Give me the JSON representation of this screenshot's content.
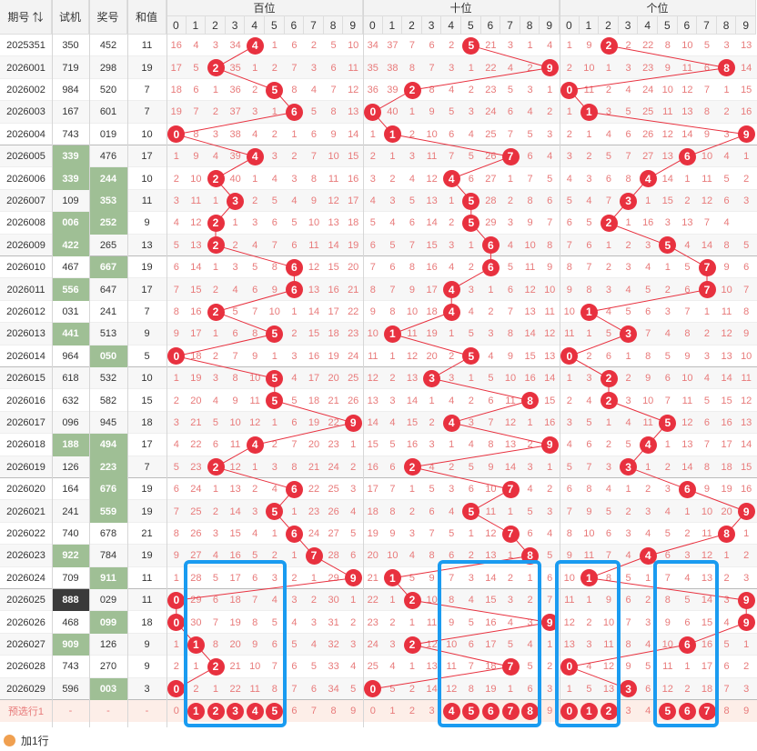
{
  "headers": {
    "period": "期号",
    "trial": "试机",
    "prize": "奖号",
    "sum": "和值",
    "groups": [
      "百位",
      "十位",
      "个位"
    ],
    "digits": [
      "0",
      "1",
      "2",
      "3",
      "4",
      "5",
      "6",
      "7",
      "8",
      "9"
    ]
  },
  "rows": [
    {
      "period": "2025351",
      "trial": "350",
      "prize": "452",
      "sum": "11",
      "hl": [
        "",
        ""
      ],
      "b": [
        "16",
        "4",
        "3",
        "34",
        "4",
        "1",
        "6",
        "2",
        "5",
        "10"
      ],
      "s": [
        "34",
        "37",
        "7",
        "6",
        "2",
        "5",
        "21",
        "3",
        "1",
        "4"
      ],
      "g": [
        "1",
        "9",
        "2",
        "2",
        "22",
        "8",
        "10",
        "5",
        "3",
        "13"
      ]
    },
    {
      "period": "2026001",
      "trial": "719",
      "prize": "298",
      "sum": "19",
      "hl": [
        "",
        ""
      ],
      "b": [
        "17",
        "5",
        "2",
        "35",
        "1",
        "2",
        "7",
        "3",
        "6",
        "11"
      ],
      "s": [
        "35",
        "38",
        "8",
        "7",
        "3",
        "1",
        "22",
        "4",
        "2",
        "9"
      ],
      "g": [
        "2",
        "10",
        "1",
        "3",
        "23",
        "9",
        "11",
        "6",
        "8",
        "14"
      ]
    },
    {
      "period": "2026002",
      "trial": "984",
      "prize": "520",
      "sum": "7",
      "hl": [
        "",
        ""
      ],
      "b": [
        "18",
        "6",
        "1",
        "36",
        "2",
        "5",
        "8",
        "4",
        "7",
        "12"
      ],
      "s": [
        "36",
        "39",
        "2",
        "8",
        "4",
        "2",
        "23",
        "5",
        "3",
        "1"
      ],
      "g": [
        "0",
        "11",
        "2",
        "4",
        "24",
        "10",
        "12",
        "7",
        "1",
        "15"
      ]
    },
    {
      "period": "2026003",
      "trial": "167",
      "prize": "601",
      "sum": "7",
      "hl": [
        "",
        ""
      ],
      "b": [
        "19",
        "7",
        "2",
        "37",
        "3",
        "1",
        "6",
        "5",
        "8",
        "13"
      ],
      "s": [
        "0",
        "40",
        "1",
        "9",
        "5",
        "3",
        "24",
        "6",
        "4",
        "2"
      ],
      "g": [
        "1",
        "1",
        "3",
        "5",
        "25",
        "11",
        "13",
        "8",
        "2",
        "16"
      ]
    },
    {
      "period": "2026004",
      "trial": "743",
      "prize": "019",
      "sum": "10",
      "hl": [
        "",
        ""
      ],
      "b": [
        "0",
        "8",
        "3",
        "38",
        "4",
        "2",
        "1",
        "6",
        "9",
        "14"
      ],
      "s": [
        "1",
        "1",
        "2",
        "10",
        "6",
        "4",
        "25",
        "7",
        "5",
        "3"
      ],
      "g": [
        "2",
        "1",
        "4",
        "6",
        "26",
        "12",
        "14",
        "9",
        "3",
        "9"
      ]
    },
    {
      "period": "2026005",
      "trial": "339",
      "prize": "476",
      "sum": "17",
      "hl": [
        "g",
        ""
      ],
      "b": [
        "1",
        "9",
        "4",
        "39",
        "4",
        "3",
        "2",
        "7",
        "10",
        "15"
      ],
      "s": [
        "2",
        "1",
        "3",
        "11",
        "7",
        "5",
        "26",
        "7",
        "6",
        "4"
      ],
      "g": [
        "3",
        "2",
        "5",
        "7",
        "27",
        "13",
        "6",
        "10",
        "4",
        "1"
      ]
    },
    {
      "period": "2026006",
      "trial": "339",
      "prize": "244",
      "sum": "10",
      "hl": [
        "g",
        "g"
      ],
      "b": [
        "2",
        "10",
        "2",
        "40",
        "1",
        "4",
        "3",
        "8",
        "11",
        "16"
      ],
      "s": [
        "3",
        "2",
        "4",
        "12",
        "4",
        "6",
        "27",
        "1",
        "7",
        "5"
      ],
      "g": [
        "4",
        "3",
        "6",
        "8",
        "4",
        "14",
        "1",
        "11",
        "5",
        "2"
      ]
    },
    {
      "period": "2026007",
      "trial": "109",
      "prize": "353",
      "sum": "11",
      "hl": [
        "",
        "g"
      ],
      "b": [
        "3",
        "11",
        "1",
        "3",
        "2",
        "5",
        "4",
        "9",
        "12",
        "17"
      ],
      "s": [
        "4",
        "3",
        "5",
        "13",
        "1",
        "5",
        "28",
        "2",
        "8",
        "6"
      ],
      "g": [
        "5",
        "4",
        "7",
        "3",
        "1",
        "15",
        "2",
        "12",
        "6",
        "3"
      ]
    },
    {
      "period": "2026008",
      "trial": "006",
      "prize": "252",
      "sum": "9",
      "hl": [
        "g",
        "g"
      ],
      "b": [
        "4",
        "12",
        "2",
        "1",
        "3",
        "6",
        "5",
        "10",
        "13",
        "18"
      ],
      "s": [
        "5",
        "4",
        "6",
        "14",
        "2",
        "5",
        "29",
        "3",
        "9",
        "7"
      ],
      "g": [
        "6",
        "5",
        "2",
        "1",
        "16",
        "3",
        "13",
        "7",
        "4",
        ""
      ]
    },
    {
      "period": "2026009",
      "trial": "422",
      "prize": "265",
      "sum": "13",
      "hl": [
        "g",
        ""
      ],
      "b": [
        "5",
        "13",
        "2",
        "2",
        "4",
        "7",
        "6",
        "11",
        "14",
        "19"
      ],
      "s": [
        "6",
        "5",
        "7",
        "15",
        "3",
        "1",
        "6",
        "4",
        "10",
        "8"
      ],
      "g": [
        "7",
        "6",
        "1",
        "2",
        "3",
        "5",
        "4",
        "14",
        "8",
        "5"
      ]
    },
    {
      "period": "2026010",
      "trial": "467",
      "prize": "667",
      "sum": "19",
      "hl": [
        "",
        "g"
      ],
      "b": [
        "6",
        "14",
        "1",
        "3",
        "5",
        "8",
        "6",
        "12",
        "15",
        "20"
      ],
      "s": [
        "7",
        "6",
        "8",
        "16",
        "4",
        "2",
        "6",
        "5",
        "11",
        "9"
      ],
      "g": [
        "8",
        "7",
        "2",
        "3",
        "4",
        "1",
        "5",
        "7",
        "9",
        "6"
      ]
    },
    {
      "period": "2026011",
      "trial": "556",
      "prize": "647",
      "sum": "17",
      "hl": [
        "g",
        ""
      ],
      "b": [
        "7",
        "15",
        "2",
        "4",
        "6",
        "9",
        "6",
        "13",
        "16",
        "21"
      ],
      "s": [
        "8",
        "7",
        "9",
        "17",
        "4",
        "3",
        "1",
        "6",
        "12",
        "10"
      ],
      "g": [
        "9",
        "8",
        "3",
        "4",
        "5",
        "2",
        "6",
        "7",
        "10",
        "7"
      ]
    },
    {
      "period": "2026012",
      "trial": "031",
      "prize": "241",
      "sum": "7",
      "hl": [
        "",
        ""
      ],
      "b": [
        "8",
        "16",
        "2",
        "5",
        "7",
        "10",
        "1",
        "14",
        "17",
        "22"
      ],
      "s": [
        "9",
        "8",
        "10",
        "18",
        "4",
        "4",
        "2",
        "7",
        "13",
        "11"
      ],
      "g": [
        "10",
        "1",
        "4",
        "5",
        "6",
        "3",
        "7",
        "1",
        "11",
        "8"
      ]
    },
    {
      "period": "2026013",
      "trial": "441",
      "prize": "513",
      "sum": "9",
      "hl": [
        "g",
        ""
      ],
      "b": [
        "9",
        "17",
        "1",
        "6",
        "8",
        "5",
        "2",
        "15",
        "18",
        "23"
      ],
      "s": [
        "10",
        "1",
        "11",
        "19",
        "1",
        "5",
        "3",
        "8",
        "14",
        "12"
      ],
      "g": [
        "11",
        "1",
        "5",
        "3",
        "7",
        "4",
        "8",
        "2",
        "12",
        "9"
      ]
    },
    {
      "period": "2026014",
      "trial": "964",
      "prize": "050",
      "sum": "5",
      "hl": [
        "",
        "g"
      ],
      "b": [
        "0",
        "18",
        "2",
        "7",
        "9",
        "1",
        "3",
        "16",
        "19",
        "24"
      ],
      "s": [
        "11",
        "1",
        "12",
        "20",
        "2",
        "5",
        "4",
        "9",
        "15",
        "13"
      ],
      "g": [
        "0",
        "2",
        "6",
        "1",
        "8",
        "5",
        "9",
        "3",
        "13",
        "10"
      ]
    },
    {
      "period": "2026015",
      "trial": "618",
      "prize": "532",
      "sum": "10",
      "hl": [
        "",
        ""
      ],
      "b": [
        "1",
        "19",
        "3",
        "8",
        "10",
        "5",
        "4",
        "17",
        "20",
        "25"
      ],
      "s": [
        "12",
        "2",
        "13",
        "3",
        "3",
        "1",
        "5",
        "10",
        "16",
        "14"
      ],
      "g": [
        "1",
        "3",
        "2",
        "2",
        "9",
        "6",
        "10",
        "4",
        "14",
        "11"
      ]
    },
    {
      "period": "2026016",
      "trial": "632",
      "prize": "582",
      "sum": "15",
      "hl": [
        "",
        ""
      ],
      "b": [
        "2",
        "20",
        "4",
        "9",
        "11",
        "5",
        "5",
        "18",
        "21",
        "26"
      ],
      "s": [
        "13",
        "3",
        "14",
        "1",
        "4",
        "2",
        "6",
        "11",
        "8",
        "15"
      ],
      "g": [
        "2",
        "4",
        "2",
        "3",
        "10",
        "7",
        "11",
        "5",
        "15",
        "12"
      ]
    },
    {
      "period": "2026017",
      "trial": "096",
      "prize": "945",
      "sum": "18",
      "hl": [
        "",
        ""
      ],
      "b": [
        "3",
        "21",
        "5",
        "10",
        "12",
        "1",
        "6",
        "19",
        "22",
        "9"
      ],
      "s": [
        "14",
        "4",
        "15",
        "2",
        "4",
        "3",
        "7",
        "12",
        "1",
        "16"
      ],
      "g": [
        "3",
        "5",
        "1",
        "4",
        "11",
        "5",
        "12",
        "6",
        "16",
        "13"
      ]
    },
    {
      "period": "2026018",
      "trial": "188",
      "prize": "494",
      "sum": "17",
      "hl": [
        "g",
        "g"
      ],
      "b": [
        "4",
        "22",
        "6",
        "11",
        "4",
        "2",
        "7",
        "20",
        "23",
        "1"
      ],
      "s": [
        "15",
        "5",
        "16",
        "3",
        "1",
        "4",
        "8",
        "13",
        "2",
        "9"
      ],
      "g": [
        "4",
        "6",
        "2",
        "5",
        "4",
        "1",
        "13",
        "7",
        "17",
        "14"
      ]
    },
    {
      "period": "2026019",
      "trial": "126",
      "prize": "223",
      "sum": "7",
      "hl": [
        "",
        "g"
      ],
      "b": [
        "5",
        "23",
        "2",
        "12",
        "1",
        "3",
        "8",
        "21",
        "24",
        "2"
      ],
      "s": [
        "16",
        "6",
        "2",
        "4",
        "2",
        "5",
        "9",
        "14",
        "3",
        "1"
      ],
      "g": [
        "5",
        "7",
        "3",
        "3",
        "1",
        "2",
        "14",
        "8",
        "18",
        "15"
      ]
    },
    {
      "period": "2026020",
      "trial": "164",
      "prize": "676",
      "sum": "19",
      "hl": [
        "",
        "g"
      ],
      "b": [
        "6",
        "24",
        "1",
        "13",
        "2",
        "4",
        "6",
        "22",
        "25",
        "3"
      ],
      "s": [
        "17",
        "7",
        "1",
        "5",
        "3",
        "6",
        "10",
        "7",
        "4",
        "2"
      ],
      "g": [
        "6",
        "8",
        "4",
        "1",
        "2",
        "3",
        "6",
        "9",
        "19",
        "16"
      ]
    },
    {
      "period": "2026021",
      "trial": "241",
      "prize": "559",
      "sum": "19",
      "hl": [
        "",
        "g"
      ],
      "b": [
        "7",
        "25",
        "2",
        "14",
        "3",
        "5",
        "1",
        "23",
        "26",
        "4"
      ],
      "s": [
        "18",
        "8",
        "2",
        "6",
        "4",
        "5",
        "11",
        "1",
        "5",
        "3"
      ],
      "g": [
        "7",
        "9",
        "5",
        "2",
        "3",
        "4",
        "1",
        "10",
        "20",
        "9"
      ]
    },
    {
      "period": "2026022",
      "trial": "740",
      "prize": "678",
      "sum": "21",
      "hl": [
        "",
        ""
      ],
      "b": [
        "8",
        "26",
        "3",
        "15",
        "4",
        "1",
        "6",
        "24",
        "27",
        "5"
      ],
      "s": [
        "19",
        "9",
        "3",
        "7",
        "5",
        "1",
        "12",
        "7",
        "6",
        "4"
      ],
      "g": [
        "8",
        "10",
        "6",
        "3",
        "4",
        "5",
        "2",
        "11",
        "8",
        "1"
      ]
    },
    {
      "period": "2026023",
      "trial": "922",
      "prize": "784",
      "sum": "19",
      "hl": [
        "g",
        ""
      ],
      "b": [
        "9",
        "27",
        "4",
        "16",
        "5",
        "2",
        "1",
        "7",
        "28",
        "6"
      ],
      "s": [
        "20",
        "10",
        "4",
        "8",
        "6",
        "2",
        "13",
        "1",
        "8",
        "5"
      ],
      "g": [
        "9",
        "11",
        "7",
        "4",
        "4",
        "6",
        "3",
        "12",
        "1",
        "2"
      ]
    },
    {
      "period": "2026024",
      "trial": "709",
      "prize": "911",
      "sum": "11",
      "hl": [
        "",
        "g"
      ],
      "b": [
        "1",
        "28",
        "5",
        "17",
        "6",
        "3",
        "2",
        "1",
        "29",
        "9"
      ],
      "s": [
        "21",
        "1",
        "5",
        "9",
        "7",
        "3",
        "14",
        "2",
        "1",
        "6"
      ],
      "g": [
        "10",
        "1",
        "8",
        "5",
        "1",
        "7",
        "4",
        "13",
        "2",
        "3"
      ]
    },
    {
      "period": "2026025",
      "trial": "888",
      "prize": "029",
      "sum": "11",
      "hl": [
        "d",
        ""
      ],
      "b": [
        "0",
        "29",
        "6",
        "18",
        "7",
        "4",
        "3",
        "2",
        "30",
        "1"
      ],
      "s": [
        "22",
        "1",
        "2",
        "10",
        "8",
        "4",
        "15",
        "3",
        "2",
        "7"
      ],
      "g": [
        "11",
        "1",
        "9",
        "6",
        "2",
        "8",
        "5",
        "14",
        "3",
        "9"
      ]
    },
    {
      "period": "2026026",
      "trial": "468",
      "prize": "099",
      "sum": "18",
      "hl": [
        "",
        "g"
      ],
      "b": [
        "0",
        "30",
        "7",
        "19",
        "8",
        "5",
        "4",
        "3",
        "31",
        "2"
      ],
      "s": [
        "23",
        "2",
        "1",
        "11",
        "9",
        "5",
        "16",
        "4",
        "3",
        "9"
      ],
      "g": [
        "12",
        "2",
        "10",
        "7",
        "3",
        "9",
        "6",
        "15",
        "4",
        "9"
      ]
    },
    {
      "period": "2026027",
      "trial": "909",
      "prize": "126",
      "sum": "9",
      "hl": [
        "g",
        ""
      ],
      "b": [
        "1",
        "1",
        "8",
        "20",
        "9",
        "6",
        "5",
        "4",
        "32",
        "3"
      ],
      "s": [
        "24",
        "3",
        "2",
        "12",
        "10",
        "6",
        "17",
        "5",
        "4",
        "1"
      ],
      "g": [
        "13",
        "3",
        "11",
        "8",
        "4",
        "10",
        "6",
        "16",
        "5",
        "1"
      ]
    },
    {
      "period": "2026028",
      "trial": "743",
      "prize": "270",
      "sum": "9",
      "hl": [
        "",
        ""
      ],
      "b": [
        "2",
        "1",
        "2",
        "21",
        "10",
        "7",
        "6",
        "5",
        "33",
        "4"
      ],
      "s": [
        "25",
        "4",
        "1",
        "13",
        "11",
        "7",
        "18",
        "7",
        "5",
        "2"
      ],
      "g": [
        "0",
        "4",
        "12",
        "9",
        "5",
        "11",
        "1",
        "17",
        "6",
        "2"
      ]
    },
    {
      "period": "2026029",
      "trial": "596",
      "prize": "003",
      "sum": "3",
      "hl": [
        "",
        "g"
      ],
      "b": [
        "0",
        "2",
        "1",
        "22",
        "11",
        "8",
        "7",
        "6",
        "34",
        "5"
      ],
      "s": [
        "0",
        "5",
        "2",
        "14",
        "12",
        "8",
        "19",
        "1",
        "6",
        "3"
      ],
      "g": [
        "1",
        "5",
        "13",
        "3",
        "6",
        "12",
        "2",
        "18",
        "7",
        "3"
      ]
    }
  ],
  "preselect": {
    "label": "预选行1",
    "dash": "-",
    "b": [
      "0",
      "1",
      "2",
      "3",
      "4",
      "5",
      "6",
      "7",
      "8",
      "9"
    ],
    "s": [
      "0",
      "1",
      "2",
      "3",
      "4",
      "5",
      "6",
      "7",
      "8",
      "9"
    ],
    "g": [
      "0",
      "1",
      "2",
      "3",
      "4",
      "5",
      "6",
      "7",
      "8",
      "9"
    ],
    "b_selected": [
      1,
      2,
      3,
      4,
      5
    ],
    "s_selected": [
      4,
      5,
      6,
      7,
      8
    ],
    "g_selected": [
      0,
      1,
      2,
      5,
      6,
      7
    ]
  },
  "add_row_label": "加1行",
  "colors": {
    "ball": "#e8313f",
    "box": "#1a9bf0",
    "miss": "#e87a7a",
    "green": "#9fbf95"
  }
}
